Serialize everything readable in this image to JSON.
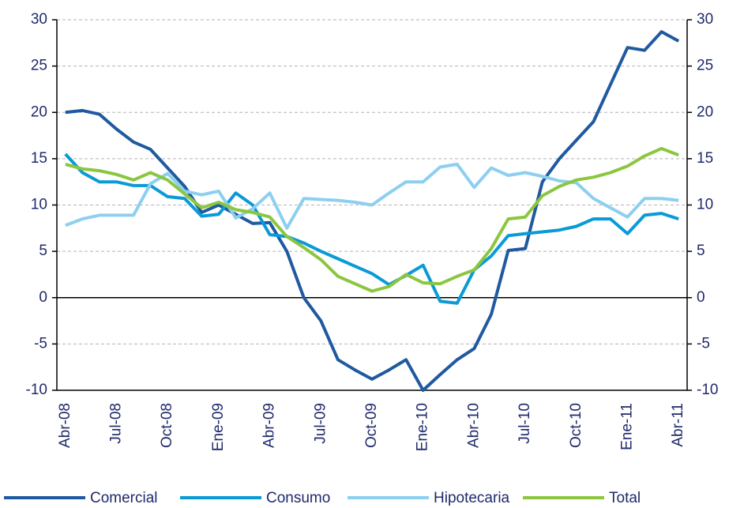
{
  "chart_data": {
    "type": "line",
    "categories": [
      "Abr-08",
      null,
      null,
      "Jul-08",
      null,
      null,
      "Oct-08",
      null,
      null,
      "Ene-09",
      null,
      null,
      "Abr-09",
      null,
      null,
      "Jul-09",
      null,
      null,
      "Oct-09",
      null,
      null,
      "Ene-10",
      null,
      null,
      "Abr-10",
      null,
      null,
      "Jul-10",
      null,
      null,
      "Oct-10",
      null,
      null,
      "Ene-11",
      null,
      null,
      "Abr-11"
    ],
    "series": [
      {
        "name": "Comercial",
        "color": "#1f5aa0",
        "values": [
          20.0,
          20.2,
          19.8,
          18.2,
          16.8,
          16.0,
          14.0,
          12.0,
          9.2,
          10.0,
          9.0,
          8.0,
          8.1,
          5.0,
          0.0,
          -2.5,
          -6.7,
          -7.8,
          -8.8,
          -7.8,
          -6.7,
          -10.0,
          -8.3,
          -6.7,
          -5.5,
          -1.8,
          5.1,
          5.3,
          12.5,
          15.0,
          17.0,
          19.0,
          23.0,
          27.0,
          26.7,
          28.7,
          27.7
        ]
      },
      {
        "name": "Consumo",
        "color": "#0a9ad6",
        "values": [
          15.5,
          13.5,
          12.5,
          12.5,
          12.1,
          12.1,
          10.9,
          10.7,
          8.8,
          9.0,
          11.3,
          10.0,
          6.8,
          6.6,
          5.9,
          5.0,
          4.2,
          3.4,
          2.6,
          1.4,
          2.4,
          3.5,
          -0.4,
          -0.6,
          3.0,
          4.5,
          6.7,
          6.9,
          7.1,
          7.3,
          7.7,
          8.5,
          8.5,
          6.9,
          8.9,
          9.1,
          8.5
        ]
      },
      {
        "name": "Hipotecaria",
        "color": "#8ccff0",
        "values": [
          7.8,
          8.5,
          8.9,
          8.9,
          8.9,
          12.3,
          13.4,
          11.5,
          11.1,
          11.5,
          8.6,
          9.6,
          11.3,
          7.5,
          10.7,
          10.6,
          10.5,
          10.3,
          10.0,
          11.3,
          12.5,
          12.5,
          14.1,
          14.4,
          11.9,
          14.0,
          13.2,
          13.5,
          13.1,
          12.6,
          12.4,
          10.7,
          9.7,
          8.7,
          10.7,
          10.7,
          10.5
        ]
      },
      {
        "name": "Total",
        "color": "#8cc63f",
        "values": [
          14.4,
          13.9,
          13.7,
          13.3,
          12.7,
          13.5,
          12.7,
          11.2,
          9.7,
          10.3,
          9.5,
          9.2,
          8.7,
          6.6,
          5.4,
          4.1,
          2.3,
          1.5,
          0.7,
          1.2,
          2.5,
          1.6,
          1.5,
          2.3,
          3.0,
          5.3,
          8.5,
          8.7,
          11.0,
          12.0,
          12.7,
          13.0,
          13.5,
          14.2,
          15.3,
          16.1,
          15.4
        ]
      }
    ],
    "ylim": [
      -10,
      30
    ],
    "yticks": [
      -10,
      -5,
      0,
      5,
      10,
      15,
      20,
      25,
      30
    ],
    "y2lim": [
      -10,
      30
    ],
    "y2ticks": [
      -10,
      -5,
      0,
      5,
      10,
      15,
      20,
      25,
      30
    ],
    "grid": true,
    "legend": "bottom"
  }
}
